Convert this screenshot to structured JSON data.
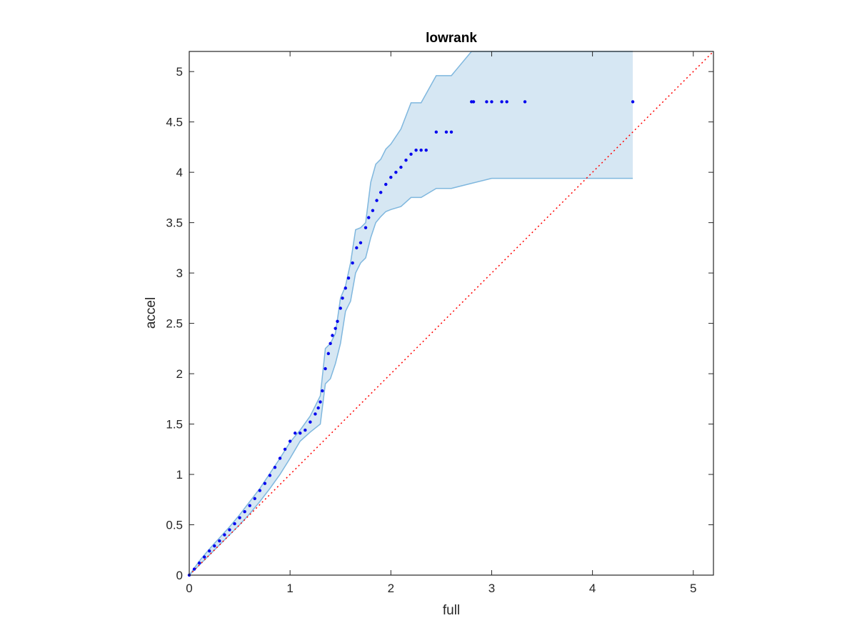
{
  "chart_data": {
    "type": "scatter",
    "title": "lowrank",
    "xlabel": "full",
    "ylabel": "accel",
    "xlim": [
      0,
      5.2
    ],
    "ylim": [
      0,
      5.2
    ],
    "x_ticks": [
      0,
      1,
      2,
      3,
      4,
      5
    ],
    "y_ticks": [
      0,
      0.5,
      1,
      1.5,
      2,
      2.5,
      3,
      3.5,
      4,
      4.5,
      5
    ],
    "x_tick_labels": [
      "0",
      "1",
      "2",
      "3",
      "4",
      "5"
    ],
    "y_tick_labels": [
      "0",
      "0.5",
      "1",
      "1.5",
      "2",
      "2.5",
      "3",
      "3.5",
      "4",
      "4.5",
      "5"
    ],
    "grid": false,
    "legend": "none",
    "colors": {
      "points": "#0000ee",
      "band_fill": "#d6e7f3",
      "band_edge": "#7fb7de",
      "reference_line": "#ff0000",
      "axes": "#262626"
    },
    "reference_line": {
      "style": "dotted",
      "x": [
        0,
        5.2
      ],
      "y": [
        0,
        5.2
      ]
    },
    "confidence_band": {
      "x": [
        0,
        0.1,
        0.2,
        0.3,
        0.4,
        0.5,
        0.6,
        0.7,
        0.8,
        0.9,
        1.0,
        1.1,
        1.2,
        1.3,
        1.35,
        1.4,
        1.45,
        1.5,
        1.55,
        1.6,
        1.65,
        1.7,
        1.75,
        1.8,
        1.85,
        1.9,
        1.95,
        2.0,
        2.1,
        2.2,
        2.3,
        2.45,
        2.6,
        2.8,
        3.0,
        3.5,
        4.0,
        4.4
      ],
      "upper": [
        0,
        0.14,
        0.26,
        0.37,
        0.48,
        0.6,
        0.73,
        0.86,
        1.01,
        1.16,
        1.32,
        1.44,
        1.58,
        1.78,
        2.25,
        2.3,
        2.4,
        2.75,
        2.87,
        3.1,
        3.43,
        3.45,
        3.5,
        3.9,
        4.08,
        4.13,
        4.23,
        4.28,
        4.43,
        4.69,
        4.69,
        4.96,
        4.96,
        5.2,
        5.2,
        5.2,
        5.2,
        5.2
      ],
      "lower": [
        0,
        0.1,
        0.2,
        0.3,
        0.4,
        0.5,
        0.61,
        0.73,
        0.86,
        1.0,
        1.16,
        1.33,
        1.42,
        1.5,
        1.9,
        1.95,
        2.1,
        2.3,
        2.62,
        2.72,
        3.0,
        3.1,
        3.15,
        3.35,
        3.5,
        3.56,
        3.61,
        3.63,
        3.66,
        3.75,
        3.75,
        3.84,
        3.84,
        3.89,
        3.94,
        3.94,
        3.94,
        3.94
      ]
    },
    "points": {
      "x": [
        0,
        0.05,
        0.1,
        0.15,
        0.2,
        0.25,
        0.3,
        0.35,
        0.4,
        0.45,
        0.5,
        0.55,
        0.6,
        0.65,
        0.7,
        0.75,
        0.8,
        0.85,
        0.9,
        0.95,
        1.0,
        1.05,
        1.1,
        1.15,
        1.2,
        1.25,
        1.28,
        1.3,
        1.32,
        1.35,
        1.38,
        1.4,
        1.42,
        1.45,
        1.47,
        1.5,
        1.52,
        1.55,
        1.58,
        1.62,
        1.66,
        1.7,
        1.75,
        1.78,
        1.82,
        1.86,
        1.9,
        1.95,
        2.0,
        2.05,
        2.1,
        2.15,
        2.2,
        2.25,
        2.3,
        2.35,
        2.45,
        2.55,
        2.6,
        2.8,
        2.82,
        2.95,
        3.0,
        3.1,
        3.15,
        3.33,
        4.4
      ],
      "y": [
        0,
        0.06,
        0.12,
        0.18,
        0.24,
        0.29,
        0.34,
        0.4,
        0.45,
        0.51,
        0.57,
        0.63,
        0.69,
        0.76,
        0.84,
        0.91,
        0.99,
        1.07,
        1.16,
        1.25,
        1.33,
        1.41,
        1.41,
        1.44,
        1.52,
        1.6,
        1.66,
        1.72,
        1.83,
        2.05,
        2.2,
        2.3,
        2.38,
        2.45,
        2.52,
        2.65,
        2.75,
        2.85,
        2.95,
        3.1,
        3.25,
        3.3,
        3.45,
        3.55,
        3.62,
        3.72,
        3.8,
        3.88,
        3.95,
        4.0,
        4.05,
        4.12,
        4.18,
        4.22,
        4.22,
        4.22,
        4.4,
        4.4,
        4.4,
        4.7,
        4.7,
        4.7,
        4.7,
        4.7,
        4.7,
        4.7,
        4.7
      ]
    }
  }
}
